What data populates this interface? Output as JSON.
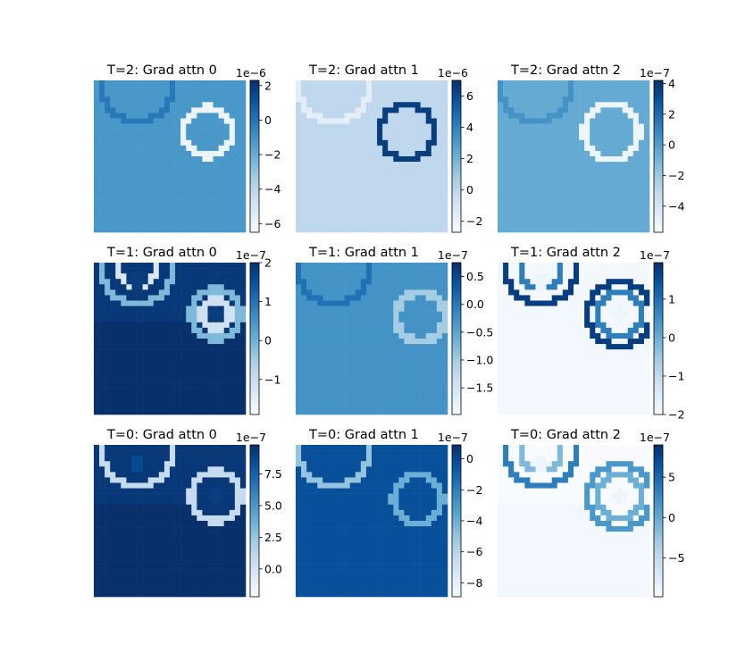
{
  "chart_data": [
    {
      "type": "heatmap",
      "title": "T=2: Grad attn 0",
      "colormap": "Blues",
      "colorbar": {
        "range": [
          -6.5,
          2.3
        ],
        "ticks": [
          2,
          0,
          -2,
          -4,
          -6
        ],
        "tick_labels": [
          "2",
          "0",
          "−2",
          "−4",
          "−6"
        ],
        "exponent": "1e−6"
      },
      "background": 0.6,
      "circles": [
        {
          "cx": 8,
          "cy": 1,
          "r": 6.5,
          "value": 0.72
        },
        {
          "cx": 21,
          "cy": 9.5,
          "r": 4.5,
          "value": 0.05
        }
      ]
    },
    {
      "type": "heatmap",
      "title": "T=2: Grad attn 1",
      "colormap": "Blues",
      "colorbar": {
        "range": [
          -2.7,
          7.0
        ],
        "ticks": [
          6,
          4,
          2,
          0,
          -2
        ],
        "tick_labels": [
          "6",
          "4",
          "2",
          "0",
          "−2"
        ],
        "exponent": "1e−6"
      },
      "background": 0.27,
      "circles": [
        {
          "cx": 7,
          "cy": 1,
          "r": 6.5,
          "value": 0.1
        },
        {
          "cx": 20.5,
          "cy": 9.5,
          "r": 5,
          "value": 0.95
        }
      ]
    },
    {
      "type": "heatmap",
      "title": "T=2: Grad attn 2",
      "colormap": "Blues",
      "colorbar": {
        "range": [
          -5.7,
          4.2
        ],
        "ticks": [
          4,
          2,
          0,
          -2,
          -4
        ],
        "tick_labels": [
          "4",
          "2",
          "0",
          "−2",
          "−4"
        ],
        "exponent": "1e−7"
      },
      "background": 0.52,
      "circles": [
        {
          "cx": 7,
          "cy": 1,
          "r": 6.5,
          "value": 0.62
        },
        {
          "cx": 21,
          "cy": 9.5,
          "r": 5,
          "value": 0.05
        }
      ]
    },
    {
      "type": "heatmap",
      "title": "T=1: Grad attn 0",
      "colormap": "Blues",
      "colorbar": {
        "range": [
          -1.9,
          2.0
        ],
        "ticks": [
          2,
          1,
          0,
          -1
        ],
        "tick_labels": [
          "2",
          "1",
          "0",
          "−1"
        ],
        "exponent": "1e−7"
      },
      "background": 0.97,
      "circles": [
        {
          "cx": 8,
          "cy": 1,
          "r": 6.5,
          "value": 0.45
        },
        {
          "cx": 8,
          "cy": 1,
          "r": 3.5,
          "value": 0.15
        },
        {
          "cx": 22.5,
          "cy": 9.5,
          "r": 4.5,
          "value": 0.45
        },
        {
          "cx": 22.5,
          "cy": 9.5,
          "r": 2.5,
          "value": 0.2
        }
      ],
      "blobs": [
        {
          "cx": 8,
          "cy": 3.5,
          "r": 1.6,
          "value": 0.95
        },
        {
          "cx": 22.5,
          "cy": 9.5,
          "r": 1.3,
          "value": 0.95
        }
      ],
      "fill_below_value": 1.0
    },
    {
      "type": "heatmap",
      "title": "T=1: Grad attn 1",
      "colormap": "Blues",
      "colorbar": {
        "range": [
          -1.98,
          0.75
        ],
        "ticks": [
          0.5,
          0.0,
          -0.5,
          -1.0,
          -1.5
        ],
        "tick_labels": [
          "0.5",
          "0.0",
          "−0.5",
          "−1.0",
          "−1.5"
        ],
        "exponent": "1e−7"
      },
      "background": 0.62,
      "circles": [
        {
          "cx": 7,
          "cy": 1,
          "r": 6.5,
          "value": 0.75
        },
        {
          "cx": 23,
          "cy": 10,
          "r": 4.5,
          "value": 0.35
        }
      ]
    },
    {
      "type": "heatmap",
      "title": "T=1: Grad attn 2",
      "colormap": "Blues",
      "colorbar": {
        "range": [
          -2.0,
          1.95
        ],
        "ticks": [
          1,
          0,
          -1,
          -2
        ],
        "tick_labels": [
          "1",
          "0",
          "−1",
          "−2"
        ],
        "exponent": "1e−7"
      },
      "background": 0.02,
      "circles": [
        {
          "cx": 8,
          "cy": 1,
          "r": 6.5,
          "value": 0.95
        },
        {
          "cx": 8,
          "cy": 1,
          "r": 3.8,
          "value": 0.7
        },
        {
          "cx": 22.5,
          "cy": 9.5,
          "r": 5.8,
          "value": 0.95
        },
        {
          "cx": 22.5,
          "cy": 9.5,
          "r": 4,
          "value": 0.7
        }
      ],
      "blobs": [
        {
          "cx": 8,
          "cy": 3.5,
          "r": 1.6,
          "value": 0.05
        },
        {
          "cx": 22.5,
          "cy": 9.5,
          "r": 1.3,
          "value": 0.05
        }
      ]
    },
    {
      "type": "heatmap",
      "title": "T=0: Grad attn 0",
      "colormap": "Blues",
      "colorbar": {
        "range": [
          -2.2,
          9.8
        ],
        "ticks": [
          7.5,
          5.0,
          2.5,
          0.0
        ],
        "tick_labels": [
          "7.5",
          "5.0",
          "2.5",
          "0.0"
        ],
        "exponent": "1e−7"
      },
      "background": 0.97,
      "circles": [
        {
          "cx": 8,
          "cy": 1,
          "r": 6.5,
          "value": 0.25
        },
        {
          "cx": 22.5,
          "cy": 9.5,
          "r": 4.5,
          "value": 0.25
        }
      ],
      "blobs": [
        {
          "cx": 8,
          "cy": 3.5,
          "r": 1.4,
          "value": 0.9
        },
        {
          "cx": 22.5,
          "cy": 9.5,
          "r": 1.2,
          "value": 0.95
        }
      ],
      "fill_below_value": 1.0
    },
    {
      "type": "heatmap",
      "title": "T=0: Grad attn 1",
      "colormap": "Blues",
      "colorbar": {
        "range": [
          -8.9,
          0.9
        ],
        "ticks": [
          0,
          -2,
          -4,
          -6,
          -8
        ],
        "tick_labels": [
          "0",
          "−2",
          "−4",
          "−6",
          "−8"
        ],
        "exponent": "1e−7"
      },
      "background": 0.88,
      "circles": [
        {
          "cx": 7,
          "cy": 1,
          "r": 6.5,
          "value": 0.4
        },
        {
          "cx": 22.5,
          "cy": 10,
          "r": 4.5,
          "value": 0.5
        }
      ]
    },
    {
      "type": "heatmap",
      "title": "T=0: Grad attn 2",
      "colormap": "Blues",
      "colorbar": {
        "range": [
          -9.8,
          9.0
        ],
        "ticks": [
          5,
          0,
          -5
        ],
        "tick_labels": [
          "5",
          "0",
          "−5"
        ],
        "exponent": "1e−7"
      },
      "background": 0.0,
      "circles": [
        {
          "cx": 8,
          "cy": 1,
          "r": 6.5,
          "value": 0.7
        },
        {
          "cx": 8,
          "cy": 1,
          "r": 3.8,
          "value": 0.45
        },
        {
          "cx": 22.5,
          "cy": 9.5,
          "r": 5.8,
          "value": 0.6
        },
        {
          "cx": 22.5,
          "cy": 9.5,
          "r": 4,
          "value": 0.5
        }
      ],
      "blobs": [
        {
          "cx": 8,
          "cy": 3.5,
          "r": 1.6,
          "value": 0.05
        },
        {
          "cx": 22.5,
          "cy": 9.5,
          "r": 1.3,
          "value": 0.05
        }
      ],
      "fill_below_value": 0.02
    }
  ]
}
